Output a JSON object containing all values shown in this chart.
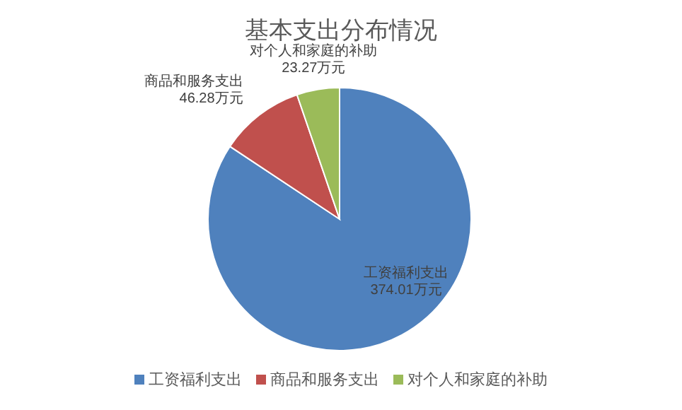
{
  "chart_data": {
    "type": "pie",
    "title": "基本支出分布情况",
    "categories": [
      "工资福利支出",
      "商品和服务支出",
      "对个人和家庭的补助"
    ],
    "values": [
      374.01,
      46.28,
      23.27
    ],
    "colors": [
      "#4f81bd",
      "#c0504d",
      "#9bbb59"
    ],
    "value_labels": [
      "374.01万元",
      "46.28万元",
      "23.27万元"
    ],
    "legend": "bottom"
  }
}
